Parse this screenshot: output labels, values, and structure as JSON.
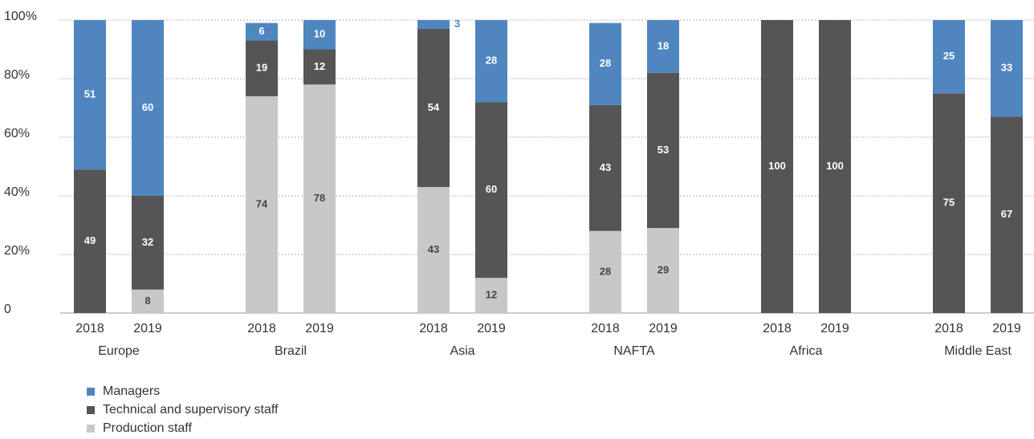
{
  "chart_data": {
    "type": "stacked_bar",
    "categories": [
      "2018",
      "2019",
      "2018",
      "2019",
      "2018",
      "2019",
      "2018",
      "2019",
      "2018",
      "2019",
      "2018",
      "2019"
    ],
    "groups": [
      "Europe",
      "Brazil",
      "Asia",
      "NAFTA",
      "Africa",
      "Middle East"
    ],
    "series": [
      {
        "name": "Managers",
        "color": "#4f86c0",
        "values": [
          51,
          60,
          6,
          10,
          3,
          28,
          28,
          18,
          null,
          null,
          25,
          33
        ]
      },
      {
        "name": "Technical and supervisory staff",
        "color": "#555555",
        "values": [
          49,
          32,
          19,
          12,
          54,
          60,
          43,
          53,
          100,
          100,
          75,
          67
        ]
      },
      {
        "name": "Production staff",
        "color": "#c8c8c8",
        "values": [
          null,
          8,
          74,
          78,
          43,
          12,
          28,
          29,
          null,
          null,
          null,
          null
        ]
      }
    ],
    "ylim": [
      0,
      100
    ],
    "yticks": [
      0,
      {
        "value": 20,
        "label": "20%"
      },
      {
        "value": 40,
        "label": "40%"
      },
      {
        "value": 60,
        "label": "60%"
      },
      {
        "value": 80,
        "label": "80%"
      },
      {
        "value": 100,
        "label": "100%"
      }
    ],
    "grid": true
  }
}
